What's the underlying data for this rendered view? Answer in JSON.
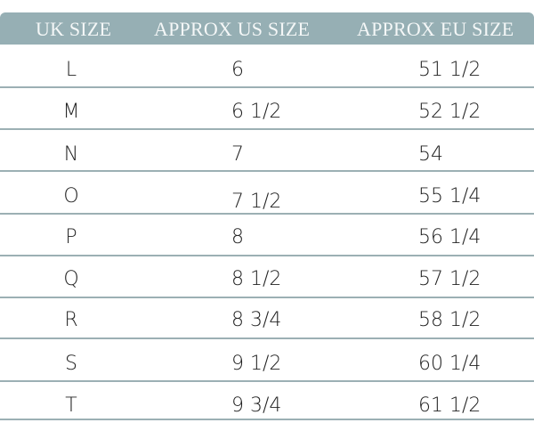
{
  "table": {
    "headers": [
      "UK SIZE",
      "APPROX US SIZE",
      "APPROX EU SIZE"
    ],
    "rows": [
      [
        "L",
        "6",
        "51 1/2"
      ],
      [
        "M",
        "6 1/2",
        "52 1/2"
      ],
      [
        "N",
        "7",
        "54"
      ],
      [
        "O",
        "7 1/2",
        "55 1/4"
      ],
      [
        "P",
        "8",
        "56 1/4"
      ],
      [
        "Q",
        "8 1/2",
        "57 1/2"
      ],
      [
        "R",
        "8 3/4",
        "58 1/2"
      ],
      [
        "S",
        "9 1/2",
        "60 1/4"
      ],
      [
        "T",
        "9 3/4",
        "61 1/2"
      ]
    ]
  },
  "colors": {
    "header_bg": "#96afb4",
    "header_text": "#f4f7f7",
    "divider": "#9cb0b4",
    "text": "#222222"
  }
}
